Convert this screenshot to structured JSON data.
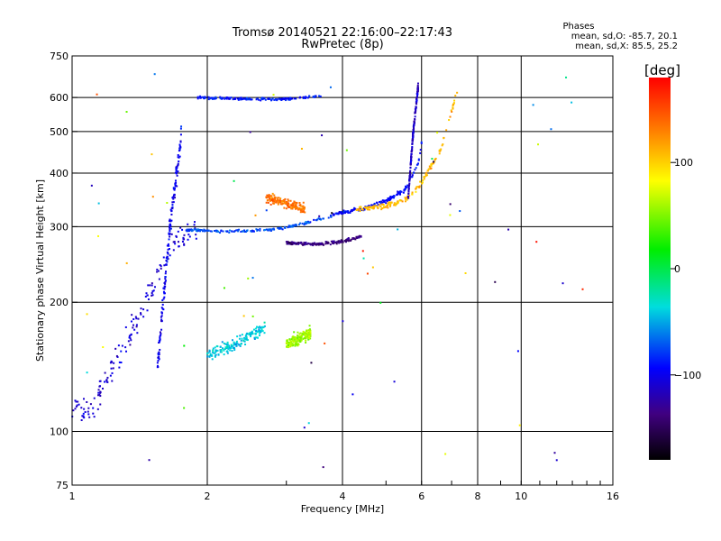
{
  "chart_data": {
    "type": "scatter",
    "title": "Tromsø 20140521 22:16:00–22:17:43",
    "subtitle": "RwPretec (8p)",
    "xlabel": "Frequency [MHz]",
    "ylabel": "Stationary phase Virtual Height [km]",
    "x_scale": "log",
    "y_scale": "log",
    "xlim": [
      1,
      16
    ],
    "ylim": [
      75,
      750
    ],
    "x_ticks": [
      1,
      2,
      4,
      6,
      8,
      10,
      16
    ],
    "x_tick_labels": [
      "1",
      "2",
      "4",
      "6",
      "8",
      "10",
      "16"
    ],
    "y_ticks": [
      75,
      100,
      200,
      300,
      400,
      500,
      600,
      750
    ],
    "y_tick_labels": [
      "75",
      "100",
      "200",
      "300",
      "400",
      "500",
      "600",
      "750"
    ],
    "grid": true,
    "phases": {
      "title": "Phases",
      "line_o": "mean, sd,O: -85.7, 20.1",
      "line_x": "mean, sd,X: 85.5, 25.2"
    },
    "colorbar": {
      "label": "[deg]",
      "range": [
        -180,
        180
      ],
      "ticks": [
        100,
        0,
        -100
      ],
      "tick_labels": [
        "100",
        "0",
        "−100"
      ]
    },
    "traces": [
      {
        "f_range": [
          1.0,
          1.9
        ],
        "h": [
          [
            1.0,
            115
          ],
          [
            1.1,
            110
          ],
          [
            1.2,
            135
          ],
          [
            1.35,
            170
          ],
          [
            1.5,
            210
          ],
          [
            1.7,
            280
          ],
          [
            1.9,
            300
          ]
        ],
        "phase": -110,
        "spread": 0.12
      },
      {
        "f_range": [
          1.55,
          1.75
        ],
        "h": [
          [
            1.55,
            140
          ],
          [
            1.65,
            300
          ],
          [
            1.75,
            490
          ]
        ],
        "phase": -100,
        "spread": 0.08
      },
      {
        "f_range": [
          1.8,
          3.8
        ],
        "h": [
          [
            1.8,
            295
          ],
          [
            2.2,
            292
          ],
          [
            2.8,
            295
          ],
          [
            3.3,
            305
          ],
          [
            3.8,
            318
          ]
        ],
        "phase": -75,
        "spread": 0.01
      },
      {
        "f_range": [
          3.0,
          4.4
        ],
        "h": [
          [
            3.0,
            275
          ],
          [
            3.5,
            273
          ],
          [
            4.0,
            277
          ],
          [
            4.4,
            285
          ]
        ],
        "phase": -140,
        "spread": 0.012
      },
      {
        "f_range": [
          3.8,
          6.0
        ],
        "h": [
          [
            3.8,
            320
          ],
          [
            4.5,
            332
          ],
          [
            5.0,
            345
          ],
          [
            5.5,
            365
          ],
          [
            5.9,
            420
          ],
          [
            6.0,
            470
          ]
        ],
        "phase": -95,
        "spread": 0.015
      },
      {
        "f_range": [
          4.3,
          7.2
        ],
        "h": [
          [
            4.3,
            330
          ],
          [
            5.0,
            335
          ],
          [
            5.6,
            350
          ],
          [
            6.0,
            380
          ],
          [
            6.6,
            450
          ],
          [
            7.0,
            560
          ],
          [
            7.2,
            620
          ]
        ],
        "phase": 110,
        "spread": 0.02
      },
      {
        "f_range": [
          5.6,
          5.9
        ],
        "h": [
          [
            5.6,
            350
          ],
          [
            5.75,
            500
          ],
          [
            5.9,
            640
          ]
        ],
        "phase": -115,
        "spread": 0.03
      },
      {
        "f_range": [
          2.7,
          3.3
        ],
        "h": [
          [
            2.7,
            350
          ],
          [
            3.0,
            340
          ],
          [
            3.3,
            330
          ]
        ],
        "phase": 135,
        "spread": 0.04
      },
      {
        "f_range": [
          3.0,
          3.4
        ],
        "h": [
          [
            3.0,
            160
          ],
          [
            3.2,
            165
          ],
          [
            3.4,
            170
          ]
        ],
        "phase": 60,
        "spread": 0.05
      },
      {
        "f_range": [
          2.0,
          2.7
        ],
        "h": [
          [
            2.0,
            150
          ],
          [
            2.3,
            160
          ],
          [
            2.7,
            175
          ]
        ],
        "phase": -40,
        "spread": 0.05
      },
      {
        "f_range": [
          1.9,
          3.6
        ],
        "h": [
          [
            1.9,
            600
          ],
          [
            2.5,
            595
          ],
          [
            3.0,
            595
          ],
          [
            3.6,
            605
          ]
        ],
        "phase": -90,
        "spread": 0.01
      }
    ]
  }
}
